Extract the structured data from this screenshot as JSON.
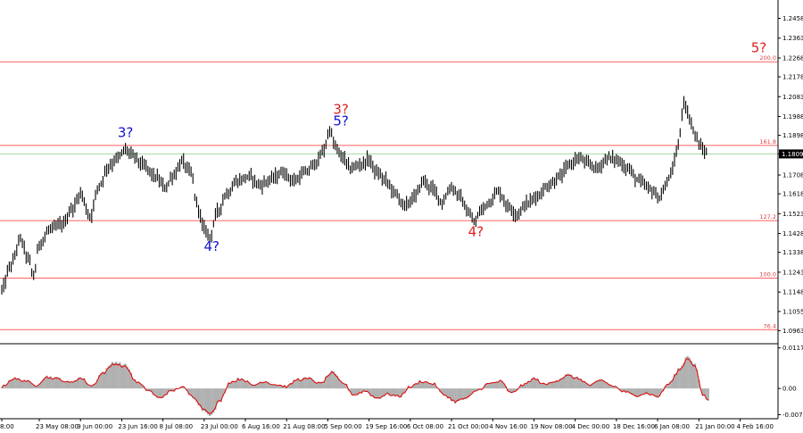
{
  "chart_data": {
    "type": "line",
    "instrument_note": "",
    "colors": {
      "price": "#000000",
      "fib_line": "#ff6060",
      "current_line": "#9fd89f",
      "wave_red": "#e02020",
      "wave_blue": "#1010d0",
      "osc_line": "#e00000",
      "osc_hist": "#b0b0b0",
      "price_box": "#000000"
    },
    "price_axis": {
      "ylim": [
        1.0905,
        1.252
      ],
      "ticks": [
        "1.2458",
        "1.2363",
        "1.2268",
        "1.2178",
        "1.2083",
        "1.1988",
        "1.1898",
        "1.1809",
        "1.1708",
        "1.1618",
        "1.1523",
        "1.1428",
        "1.1338",
        "1.1243",
        "1.1148",
        "1.1055",
        "1.0963"
      ]
    },
    "current_price": {
      "label": "1.1809",
      "value": 1.1809
    },
    "fib_levels": [
      {
        "label": "200.0",
        "value": 1.225
      },
      {
        "label": "161.8",
        "value": 1.185
      },
      {
        "label": "127.2",
        "value": 1.149
      },
      {
        "label": "100.0",
        "value": 1.1215
      },
      {
        "label": "76.4",
        "value": 1.0968
      }
    ],
    "time_axis": {
      "n_points": 400,
      "ticks": [
        {
          "label": "8:00",
          "i": 0
        },
        {
          "label": "23 May 08:00",
          "i": 20
        },
        {
          "label": "9 Jun 00:00",
          "i": 42
        },
        {
          "label": "23 Jun 16:00",
          "i": 64
        },
        {
          "label": "8 Jul 08:00",
          "i": 86
        },
        {
          "label": "23 Jul 00:00",
          "i": 108
        },
        {
          "label": "6 Aug 16:00",
          "i": 130
        },
        {
          "label": "21 Aug 08:00",
          "i": 152
        },
        {
          "label": "5 Sep 00:00",
          "i": 174
        },
        {
          "label": "19 Sep 16:00",
          "i": 196
        },
        {
          "label": "6 Oct 08:00",
          "i": 218
        },
        {
          "label": "21 Oct 00:00",
          "i": 240
        },
        {
          "label": "4 Nov 16:00",
          "i": 262
        },
        {
          "label": "19 Nov 08:00",
          "i": 284
        },
        {
          "label": "4 Dec 00:00",
          "i": 306
        },
        {
          "label": "18 Dec 16:00",
          "i": 328
        },
        {
          "label": "6 Jan 08:00",
          "i": 350
        },
        {
          "label": "21 Jan 00:00",
          "i": 372
        },
        {
          "label": "4 Feb 16:00",
          "i": 394
        }
      ]
    },
    "price_anchors": [
      [
        0,
        1.116
      ],
      [
        5,
        1.128
      ],
      [
        10,
        1.14
      ],
      [
        14,
        1.131
      ],
      [
        17,
        1.1225
      ],
      [
        20,
        1.138
      ],
      [
        26,
        1.145
      ],
      [
        32,
        1.147
      ],
      [
        38,
        1.155
      ],
      [
        42,
        1.162
      ],
      [
        47,
        1.151
      ],
      [
        52,
        1.166
      ],
      [
        57,
        1.175
      ],
      [
        62,
        1.179
      ],
      [
        66,
        1.183
      ],
      [
        70,
        1.18
      ],
      [
        76,
        1.175
      ],
      [
        82,
        1.17
      ],
      [
        87,
        1.165
      ],
      [
        92,
        1.171
      ],
      [
        96,
        1.177
      ],
      [
        101,
        1.172
      ],
      [
        104,
        1.157
      ],
      [
        108,
        1.145
      ],
      [
        111,
        1.1415
      ],
      [
        115,
        1.153
      ],
      [
        120,
        1.162
      ],
      [
        126,
        1.168
      ],
      [
        132,
        1.17
      ],
      [
        138,
        1.166
      ],
      [
        144,
        1.169
      ],
      [
        150,
        1.172
      ],
      [
        156,
        1.168
      ],
      [
        162,
        1.172
      ],
      [
        168,
        1.177
      ],
      [
        172,
        1.183
      ],
      [
        175,
        1.1925
      ],
      [
        178,
        1.184
      ],
      [
        182,
        1.179
      ],
      [
        186,
        1.174
      ],
      [
        192,
        1.176
      ],
      [
        196,
        1.178
      ],
      [
        200,
        1.172
      ],
      [
        205,
        1.168
      ],
      [
        210,
        1.162
      ],
      [
        215,
        1.156
      ],
      [
        220,
        1.16
      ],
      [
        225,
        1.168
      ],
      [
        230,
        1.164
      ],
      [
        235,
        1.158
      ],
      [
        240,
        1.165
      ],
      [
        244,
        1.161
      ],
      [
        249,
        1.153
      ],
      [
        252,
        1.148
      ],
      [
        256,
        1.154
      ],
      [
        260,
        1.158
      ],
      [
        265,
        1.163
      ],
      [
        270,
        1.156
      ],
      [
        275,
        1.152
      ],
      [
        280,
        1.157
      ],
      [
        286,
        1.161
      ],
      [
        292,
        1.166
      ],
      [
        298,
        1.17
      ],
      [
        303,
        1.176
      ],
      [
        308,
        1.179
      ],
      [
        313,
        1.176
      ],
      [
        318,
        1.174
      ],
      [
        323,
        1.179
      ],
      [
        328,
        1.178
      ],
      [
        334,
        1.174
      ],
      [
        340,
        1.168
      ],
      [
        346,
        1.164
      ],
      [
        351,
        1.16
      ],
      [
        354,
        1.165
      ],
      [
        358,
        1.174
      ],
      [
        361,
        1.185
      ],
      [
        364,
        1.206
      ],
      [
        367,
        1.198
      ],
      [
        370,
        1.19
      ],
      [
        373,
        1.184
      ],
      [
        376,
        1.1815
      ]
    ],
    "wave_labels": [
      {
        "text": "3?",
        "i": 66,
        "price": 1.189,
        "color": "blue"
      },
      {
        "text": "4?",
        "i": 112,
        "price": 1.1345,
        "color": "blue"
      },
      {
        "text": "3?",
        "i": 181,
        "price": 1.2,
        "color": "red"
      },
      {
        "text": "5?",
        "i": 181,
        "price": 1.1945,
        "color": "blue"
      },
      {
        "text": "4?",
        "i": 253,
        "price": 1.1415,
        "color": "red"
      },
      {
        "text": "5?",
        "i": 404,
        "price": 1.2295,
        "color": "red"
      }
    ],
    "oscillator": {
      "ylim": [
        -0.0085,
        0.0127
      ],
      "ticks": [
        "0.01174",
        "0.00",
        "-0.00759"
      ],
      "anchors": [
        [
          0,
          0.0005
        ],
        [
          6,
          0.003
        ],
        [
          12,
          0.0025
        ],
        [
          18,
          0.001
        ],
        [
          24,
          0.0035
        ],
        [
          30,
          0.003
        ],
        [
          36,
          0.0018
        ],
        [
          42,
          0.0032
        ],
        [
          48,
          0.0008
        ],
        [
          54,
          0.0048
        ],
        [
          60,
          0.0078
        ],
        [
          66,
          0.0068
        ],
        [
          72,
          0.002
        ],
        [
          78,
          -0.0005
        ],
        [
          84,
          -0.003
        ],
        [
          90,
          -0.001
        ],
        [
          96,
          0.0005
        ],
        [
          102,
          -0.0025
        ],
        [
          108,
          -0.0065
        ],
        [
          112,
          -0.0078
        ],
        [
          116,
          -0.004
        ],
        [
          122,
          0.002
        ],
        [
          128,
          0.003
        ],
        [
          134,
          0.001
        ],
        [
          140,
          0.0022
        ],
        [
          146,
          0.0012
        ],
        [
          152,
          0.0006
        ],
        [
          158,
          0.0028
        ],
        [
          164,
          0.003
        ],
        [
          170,
          0.0015
        ],
        [
          176,
          0.0048
        ],
        [
          182,
          0.0018
        ],
        [
          188,
          -0.002
        ],
        [
          194,
          -0.0008
        ],
        [
          200,
          -0.003
        ],
        [
          206,
          -0.0018
        ],
        [
          212,
          -0.0025
        ],
        [
          218,
          0.0005
        ],
        [
          224,
          0.0022
        ],
        [
          230,
          0.0015
        ],
        [
          236,
          -0.002
        ],
        [
          242,
          -0.004
        ],
        [
          248,
          -0.003
        ],
        [
          254,
          -0.0005
        ],
        [
          260,
          0.0015
        ],
        [
          266,
          0.0022
        ],
        [
          272,
          -0.0015
        ],
        [
          278,
          0.001
        ],
        [
          284,
          0.003
        ],
        [
          290,
          0.0012
        ],
        [
          296,
          0.0025
        ],
        [
          302,
          0.004
        ],
        [
          308,
          0.003
        ],
        [
          314,
          0.001
        ],
        [
          320,
          0.0025
        ],
        [
          326,
          0.0008
        ],
        [
          332,
          -0.001
        ],
        [
          338,
          -0.0022
        ],
        [
          344,
          -0.0015
        ],
        [
          350,
          -0.0025
        ],
        [
          356,
          0.0015
        ],
        [
          362,
          0.006
        ],
        [
          366,
          0.0095
        ],
        [
          370,
          0.007
        ],
        [
          374,
          -0.002
        ],
        [
          377,
          -0.0035
        ]
      ]
    }
  }
}
